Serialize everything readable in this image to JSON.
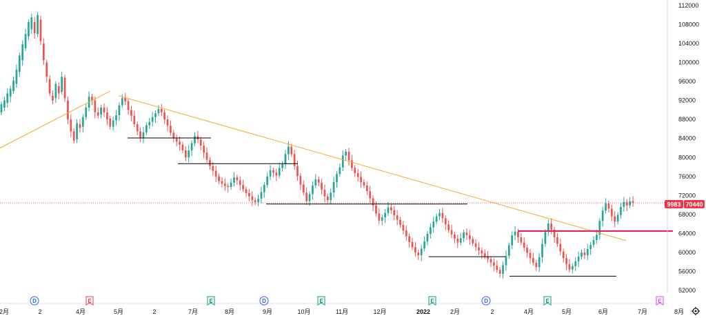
{
  "chart_data": {
    "type": "candlestick",
    "symbol_tag": "9983",
    "last_price": 70440,
    "last_price_label": "70440",
    "ylim": [
      50500,
      113000
    ],
    "y_ticks": [
      52000,
      56000,
      60000,
      64000,
      68000,
      72000,
      76000,
      80000,
      84000,
      88000,
      92000,
      96000,
      100000,
      104000,
      108000,
      112000
    ],
    "x_ticks": [
      "2月",
      "2",
      "4月",
      "5月",
      "2",
      "7月",
      "8月",
      "9月",
      "10月",
      "11月",
      "12月",
      "2022",
      "2月",
      "2",
      "4月",
      "5月",
      "6月",
      "7月",
      "8月"
    ],
    "colors": {
      "up": "#26a69a",
      "down": "#ef5350",
      "trendline": "#f7a933",
      "support": "#000000",
      "resistance": "#e91e63",
      "price_label": "#f23645"
    },
    "candles": [
      [
        89500,
        91200
      ],
      [
        90500,
        92000
      ],
      [
        91500,
        93500
      ],
      [
        92800,
        94500
      ],
      [
        94000,
        96200
      ],
      [
        95500,
        98500
      ],
      [
        98000,
        101500
      ],
      [
        100500,
        103800
      ],
      [
        103000,
        106000
      ],
      [
        105500,
        108500
      ],
      [
        107000,
        109500
      ],
      [
        108500,
        106200
      ],
      [
        106000,
        110000
      ],
      [
        109000,
        104500
      ],
      [
        104000,
        100500
      ],
      [
        100000,
        97000
      ],
      [
        96500,
        93500
      ],
      [
        93000,
        92000
      ],
      [
        92500,
        95500
      ],
      [
        95000,
        93500
      ],
      [
        93800,
        97000
      ],
      [
        96800,
        92500
      ],
      [
        92000,
        88000
      ],
      [
        88000,
        85500
      ],
      [
        85500,
        83500
      ],
      [
        83800,
        87200
      ],
      [
        87000,
        86200
      ],
      [
        86500,
        88500
      ],
      [
        88500,
        90500
      ],
      [
        90500,
        92800
      ],
      [
        92800,
        92000
      ],
      [
        92000,
        89500
      ],
      [
        89500,
        88800
      ],
      [
        89000,
        90500
      ],
      [
        90500,
        89500
      ],
      [
        89500,
        88000
      ],
      [
        88200,
        86500
      ],
      [
        86500,
        87800
      ],
      [
        87800,
        88900
      ],
      [
        88900,
        91000
      ],
      [
        91000,
        92500
      ],
      [
        92500,
        91800
      ],
      [
        91800,
        90000
      ],
      [
        90000,
        88800
      ],
      [
        88800,
        87000
      ],
      [
        87000,
        85500
      ],
      [
        85500,
        84200
      ],
      [
        84200,
        85300
      ],
      [
        85300,
        86800
      ],
      [
        86800,
        87500
      ],
      [
        87500,
        88500
      ],
      [
        88500,
        89300
      ],
      [
        89300,
        90200
      ],
      [
        90200,
        89500
      ],
      [
        89500,
        88000
      ],
      [
        88000,
        86700
      ],
      [
        86700,
        85200
      ],
      [
        85200,
        84000
      ],
      [
        84000,
        83300
      ],
      [
        83300,
        82700
      ],
      [
        82700,
        81500
      ],
      [
        81500,
        80000
      ],
      [
        80000,
        81500
      ],
      [
        81500,
        83000
      ],
      [
        83000,
        84500
      ],
      [
        84500,
        83800
      ],
      [
        83800,
        82500
      ],
      [
        82500,
        81000
      ],
      [
        81000,
        79500
      ],
      [
        79500,
        78200
      ],
      [
        78200,
        77200
      ],
      [
        77200,
        76000
      ],
      [
        76000,
        75000
      ],
      [
        75000,
        74500
      ],
      [
        74500,
        74000
      ],
      [
        74000,
        73800
      ],
      [
        73800,
        74700
      ],
      [
        74700,
        75800
      ],
      [
        75800,
        75200
      ],
      [
        75200,
        74200
      ],
      [
        74200,
        73300
      ],
      [
        73300,
        72500
      ],
      [
        72500,
        71800
      ],
      [
        71800,
        71000
      ],
      [
        71000,
        70600
      ],
      [
        70600,
        71300
      ],
      [
        71300,
        72700
      ],
      [
        72700,
        74200
      ],
      [
        74200,
        76000
      ],
      [
        76000,
        77300
      ],
      [
        77300,
        76800
      ],
      [
        76800,
        76200
      ],
      [
        76200,
        77800
      ],
      [
        77800,
        78600
      ],
      [
        78600,
        80700
      ],
      [
        80700,
        82300
      ],
      [
        82300,
        80700
      ],
      [
        80700,
        78200
      ],
      [
        78200,
        76100
      ],
      [
        76100,
        74300
      ],
      [
        74300,
        72600
      ],
      [
        72600,
        70800
      ],
      [
        70800,
        72300
      ],
      [
        72300,
        74100
      ],
      [
        74100,
        75400
      ],
      [
        75400,
        74700
      ],
      [
        74700,
        73200
      ],
      [
        73200,
        71800
      ],
      [
        71800,
        71000
      ],
      [
        71000,
        72600
      ],
      [
        72600,
        74800
      ],
      [
        74800,
        76500
      ],
      [
        76500,
        77900
      ],
      [
        77900,
        80400
      ],
      [
        80400,
        81200
      ],
      [
        81200,
        79400
      ],
      [
        79400,
        77800
      ],
      [
        77800,
        76700
      ],
      [
        76700,
        75900
      ],
      [
        75900,
        74800
      ],
      [
        74800,
        74100
      ],
      [
        74100,
        72900
      ],
      [
        72900,
        71400
      ],
      [
        71400,
        69900
      ],
      [
        69900,
        68200
      ],
      [
        68200,
        66700
      ],
      [
        66700,
        67400
      ],
      [
        67400,
        68300
      ],
      [
        68300,
        69500
      ],
      [
        69500,
        68900
      ],
      [
        68900,
        67800
      ],
      [
        67800,
        66900
      ],
      [
        66900,
        65800
      ],
      [
        65800,
        64600
      ],
      [
        64600,
        63400
      ],
      [
        63400,
        62200
      ],
      [
        62200,
        61100
      ],
      [
        61100,
        60000
      ],
      [
        60000,
        59400
      ],
      [
        59400,
        60800
      ],
      [
        60800,
        62300
      ],
      [
        62300,
        63900
      ],
      [
        63900,
        65300
      ],
      [
        65300,
        66500
      ],
      [
        66500,
        67600
      ],
      [
        67600,
        68300
      ],
      [
        68300,
        67200
      ],
      [
        67200,
        65900
      ],
      [
        65900,
        64700
      ],
      [
        64700,
        63800
      ],
      [
        63800,
        62900
      ],
      [
        62900,
        62100
      ],
      [
        62100,
        63000
      ],
      [
        63000,
        64200
      ],
      [
        64200,
        63600
      ],
      [
        63600,
        62800
      ],
      [
        62800,
        61900
      ],
      [
        61900,
        61100
      ],
      [
        61100,
        60400
      ],
      [
        60400,
        59800
      ],
      [
        59800,
        59200
      ],
      [
        59200,
        58600
      ],
      [
        58600,
        57900
      ],
      [
        57900,
        57200
      ],
      [
        57200,
        56300
      ],
      [
        56300,
        55500
      ],
      [
        55500,
        57300
      ],
      [
        57300,
        59300
      ],
      [
        59300,
        61500
      ],
      [
        61500,
        63600
      ],
      [
        63600,
        64400
      ],
      [
        64400,
        63200
      ],
      [
        63200,
        62100
      ],
      [
        62100,
        61000
      ],
      [
        61000,
        59900
      ],
      [
        59900,
        58800
      ],
      [
        58800,
        57800
      ],
      [
        57800,
        56900
      ],
      [
        56900,
        59000
      ],
      [
        59000,
        61800
      ],
      [
        61800,
        64300
      ],
      [
        64300,
        66100
      ],
      [
        66100,
        64800
      ],
      [
        64800,
        63200
      ],
      [
        63200,
        61800
      ],
      [
        61800,
        60200
      ],
      [
        60200,
        58800
      ],
      [
        58800,
        57500
      ],
      [
        57500,
        56400
      ],
      [
        56400,
        57100
      ],
      [
        57100,
        58100
      ],
      [
        58100,
        59100
      ],
      [
        59100,
        60000
      ],
      [
        60000,
        59400
      ],
      [
        59400,
        60700
      ],
      [
        60700,
        61600
      ],
      [
        61600,
        62600
      ],
      [
        62600,
        63700
      ],
      [
        63700,
        66600
      ],
      [
        66600,
        68800
      ],
      [
        68800,
        70300
      ],
      [
        70300,
        69200
      ],
      [
        69200,
        67600
      ],
      [
        67600,
        66500
      ],
      [
        66500,
        67900
      ],
      [
        67900,
        69600
      ],
      [
        69600,
        70600
      ],
      [
        70600,
        69900
      ],
      [
        69900,
        70800
      ],
      [
        70800,
        70440
      ]
    ],
    "trendlines": [
      {
        "from": [
          0,
          82000
        ],
        "to": [
          160,
          94000
        ]
      },
      {
        "from": [
          172,
          93000
        ],
        "to": [
          908,
          62500
        ]
      }
    ],
    "support_lines": [
      {
        "from": [
          185,
          84100
        ],
        "to": [
          306,
          84100
        ]
      },
      {
        "from": [
          258,
          78700
        ],
        "to": [
          432,
          78700
        ]
      },
      {
        "from": [
          386,
          70200
        ],
        "to": [
          678,
          70200
        ]
      },
      {
        "from": [
          622,
          59100
        ],
        "to": [
          733,
          59100
        ]
      },
      {
        "from": [
          739,
          55000
        ],
        "to": [
          894,
          55000
        ]
      }
    ],
    "resistance_line": {
      "from": [
        751,
        64500
      ],
      "to": [
        976,
        64500
      ]
    },
    "event_badges": [
      {
        "label": "D",
        "x": 50,
        "kind": "dividend"
      },
      {
        "label": "E",
        "x": 130,
        "kind": "earnings-past"
      },
      {
        "label": "E",
        "x": 306,
        "kind": "earnings"
      },
      {
        "label": "D",
        "x": 383,
        "kind": "dividend"
      },
      {
        "label": "E",
        "x": 466,
        "kind": "earnings"
      },
      {
        "label": "E",
        "x": 627,
        "kind": "earnings"
      },
      {
        "label": "D",
        "x": 705,
        "kind": "dividend"
      },
      {
        "label": "E",
        "x": 794,
        "kind": "earnings"
      },
      {
        "label": "E",
        "x": 957,
        "kind": "earnings-future"
      }
    ],
    "settings_icon": "gear-icon"
  }
}
